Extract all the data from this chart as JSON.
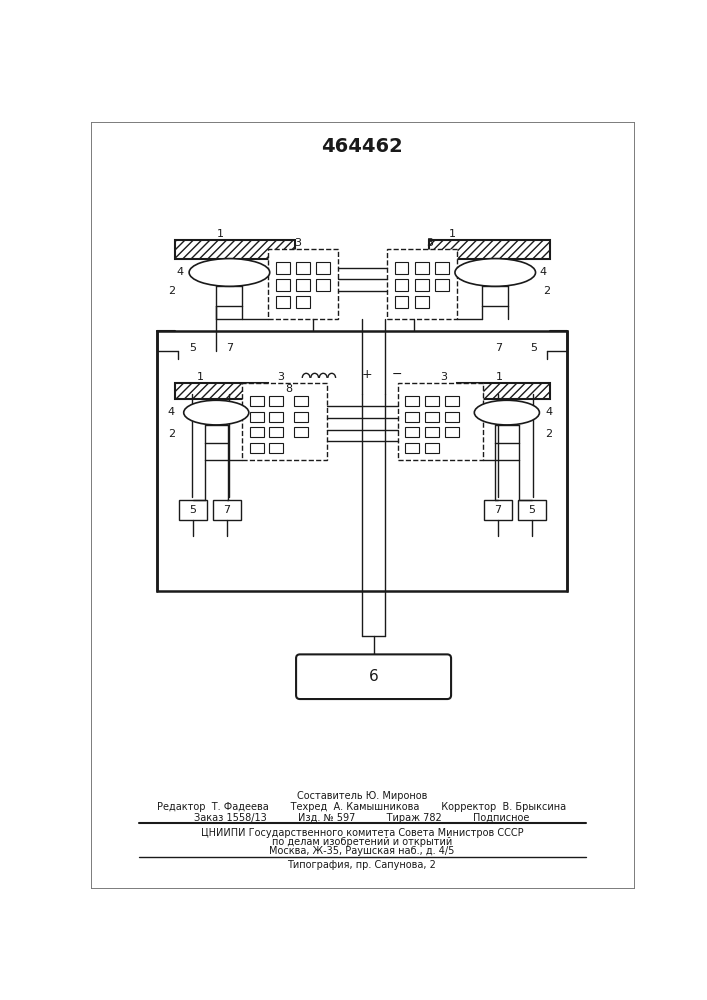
{
  "title": "464462",
  "line_color": "#1a1a1a",
  "footer": {
    "line1": "Составитель Ю. Миронов",
    "line2_l": "Редактор  Т. Фадеева",
    "line2_m": "Техред  А. Камышникова",
    "line2_r": "Корректор  В. Брыксина",
    "line3_l": "Заказ 1558/13",
    "line3_m": "Изд. № 597",
    "line3_mm": "Тираж 782",
    "line3_r": "Подписное",
    "line4": "ЦНИИПИ Государственного комитета Совета Министров СССР",
    "line5": "по делам изобретений и открытий",
    "line6": "Москва, Ж-35, Раушская наб., д. 4/5",
    "line7": "Типография, пр. Сапунова, 2"
  }
}
